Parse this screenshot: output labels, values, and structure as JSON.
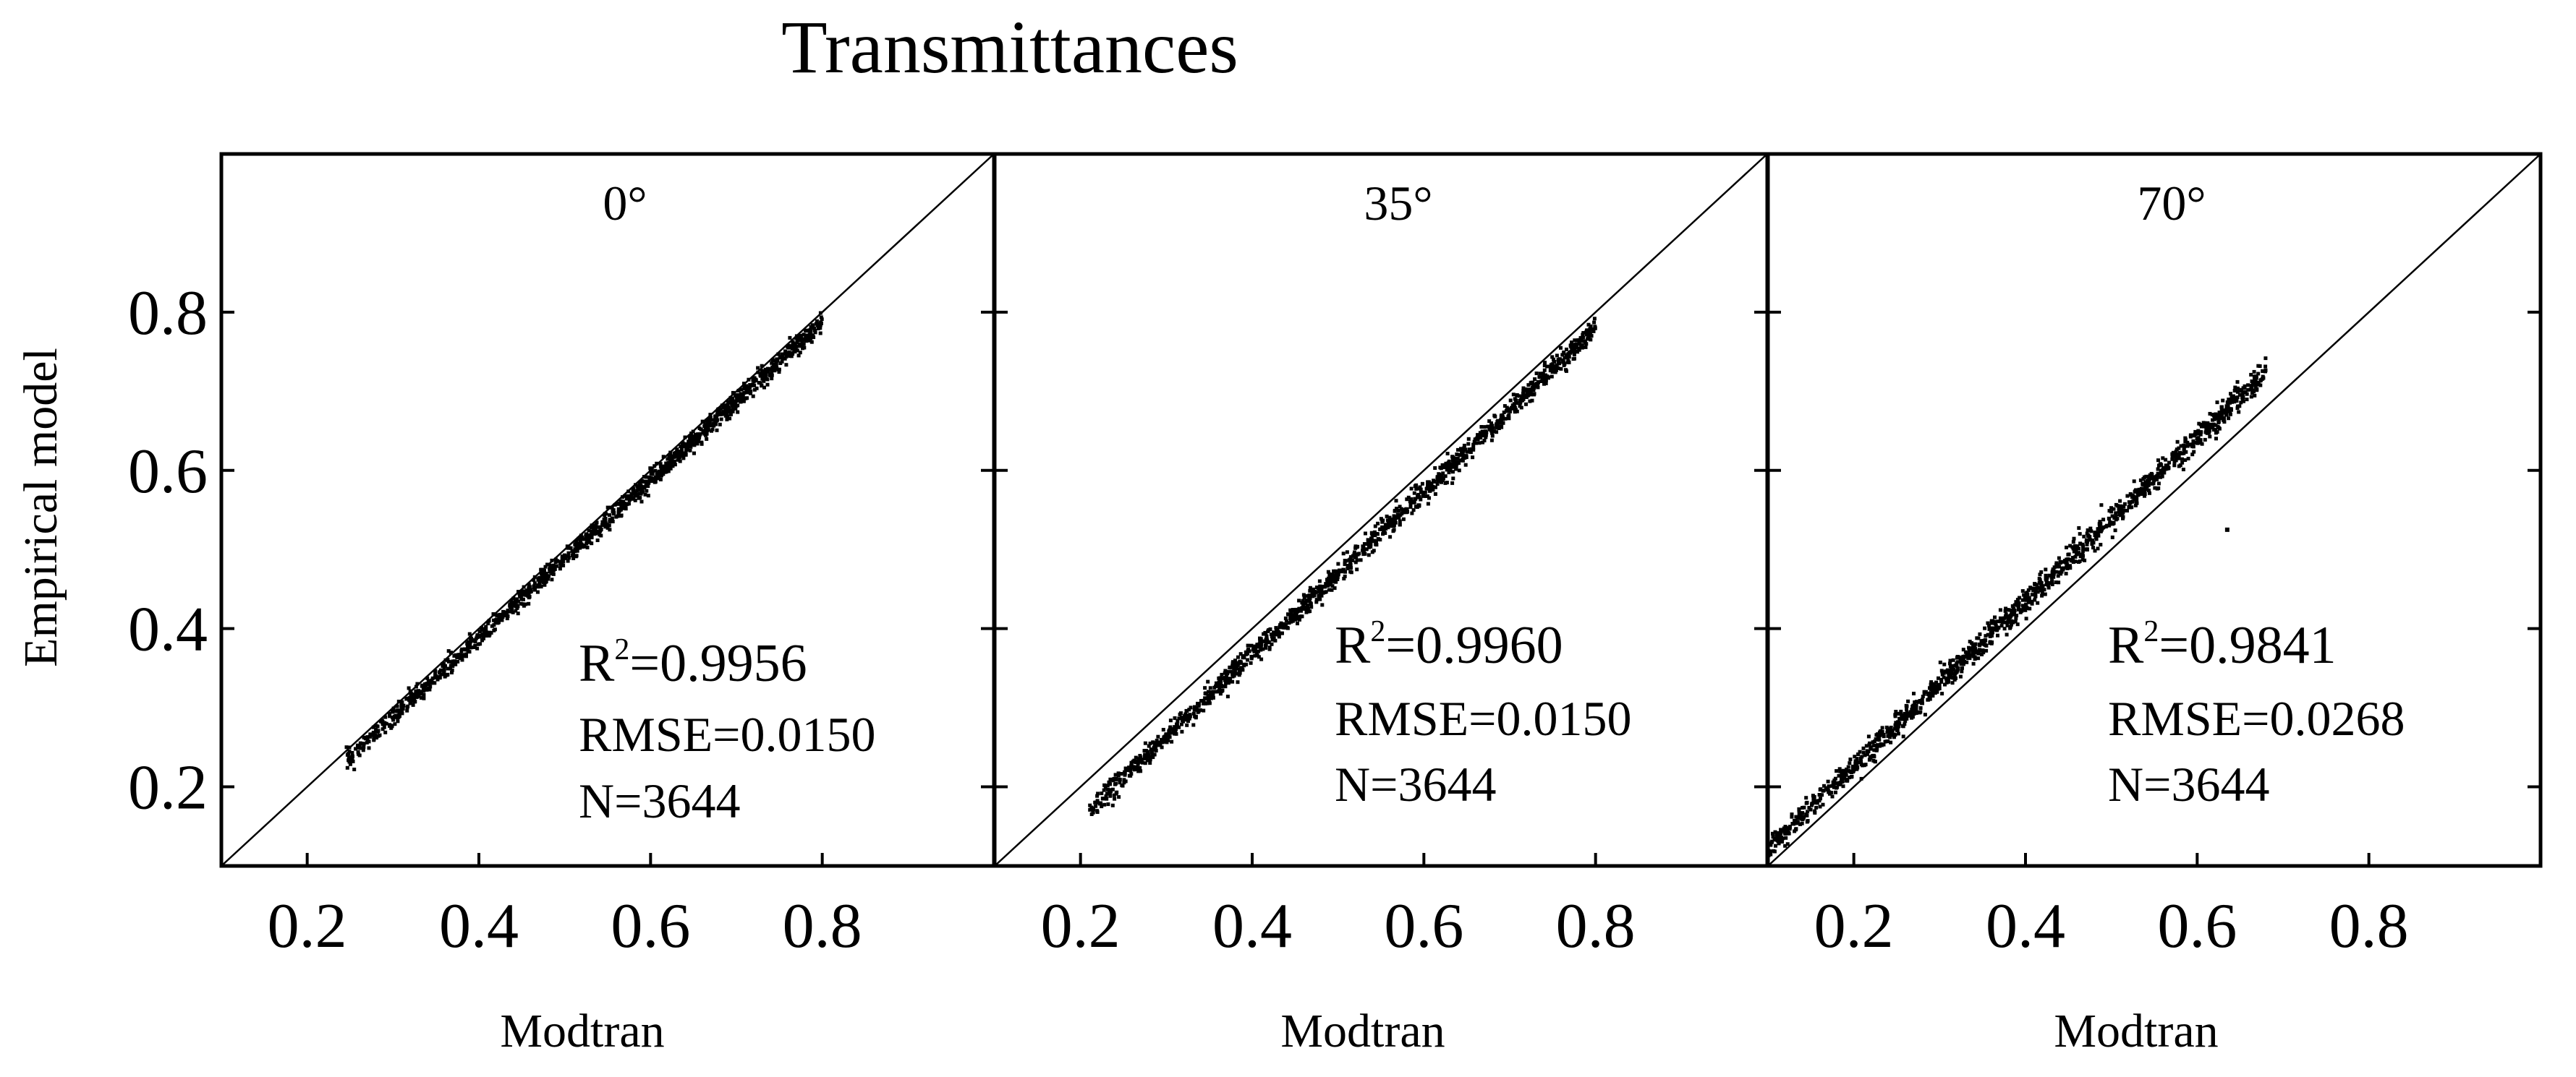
{
  "title": "Transmittances",
  "ylabel": "Empirical model",
  "xlabel": "Modtran",
  "chart_data": {
    "type": "scatter",
    "title": "Transmittances",
    "ylabel": "Empirical model",
    "xlabel": "Modtran",
    "xlim": [
      0.1,
      1.0
    ],
    "ylim": [
      0.1,
      1.0
    ],
    "xticks": [
      "0.2",
      "0.4",
      "0.6",
      "0.8"
    ],
    "yticks": [
      "0.2",
      "0.4",
      "0.6",
      "0.8"
    ],
    "reference_line": "1:1",
    "panels": [
      {
        "angle": "0°",
        "r2": "0.9956",
        "rmse": "RMSE=0.0150",
        "n": "N=3644",
        "x_range": [
          0.245,
          0.8
        ],
        "slope": 1.0,
        "intercept": -0.012,
        "spread": 0.006,
        "outliers": []
      },
      {
        "angle": "35°",
        "r2": "0.9960",
        "rmse": "RMSE=0.0150",
        "n": "N=3644",
        "x_range": [
          0.21,
          0.8
        ],
        "slope": 1.03,
        "intercept": -0.045,
        "spread": 0.007,
        "outliers": [
          [
            0.69,
            0.655
          ]
        ]
      },
      {
        "angle": "70°",
        "r2": "0.9841",
        "rmse": "RMSE=0.0268",
        "n": "N=3644",
        "x_range": [
          0.1,
          0.68
        ],
        "slope": 1.04,
        "intercept": 0.018,
        "spread": 0.008,
        "outliers": [
          [
            0.635,
            0.525
          ]
        ]
      }
    ]
  }
}
